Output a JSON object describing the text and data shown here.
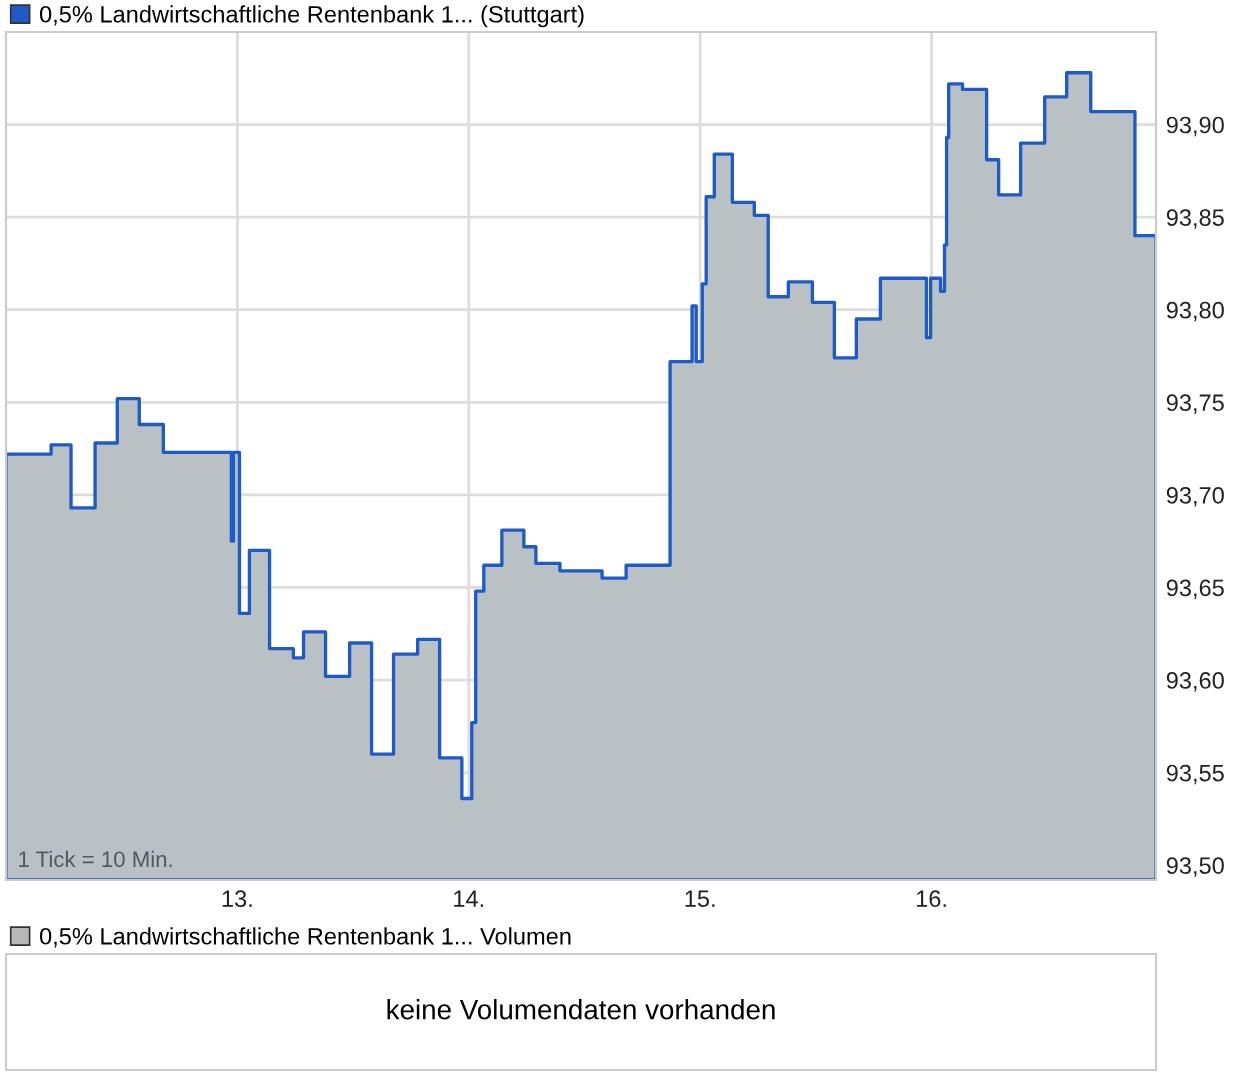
{
  "chart_data": [
    {
      "type": "area",
      "series": [
        {
          "name": "0,5% Landwirtschaftliche Rentenbank 1... (Stuttgart)",
          "color": "#1f5bc6",
          "x": [
            12.0,
            12.195,
            12.281,
            12.385,
            12.481,
            12.576,
            12.68,
            12.974,
            12.983,
            13.009,
            13.052,
            13.139,
            13.242,
            13.286,
            13.381,
            13.485,
            13.58,
            13.675,
            13.779,
            13.874,
            13.97,
            14.013,
            14.03,
            14.065,
            14.143,
            14.238,
            14.29,
            14.394,
            14.576,
            14.68,
            14.87,
            14.965,
            14.983,
            15.009,
            15.026,
            15.061,
            15.139,
            15.234,
            15.294,
            15.381,
            15.485,
            15.58,
            15.675,
            15.779,
            15.978,
            15.996,
            16.039,
            16.056,
            16.065,
            16.074,
            16.134,
            16.238,
            16.29,
            16.385,
            16.489,
            16.584,
            16.688,
            16.879,
            16.97
          ],
          "values": [
            93.722,
            93.727,
            93.693,
            93.728,
            93.752,
            93.738,
            93.723,
            93.675,
            93.723,
            93.636,
            93.67,
            93.617,
            93.612,
            93.626,
            93.602,
            93.62,
            93.56,
            93.614,
            93.622,
            93.558,
            93.536,
            93.577,
            93.648,
            93.662,
            93.681,
            93.672,
            93.663,
            93.659,
            93.655,
            93.662,
            93.772,
            93.802,
            93.772,
            93.814,
            93.861,
            93.884,
            93.858,
            93.851,
            93.807,
            93.815,
            93.804,
            93.774,
            93.795,
            93.817,
            93.785,
            93.817,
            93.81,
            93.835,
            93.893,
            93.922,
            93.919,
            93.881,
            93.862,
            93.89,
            93.915,
            93.928,
            93.907,
            93.84,
            93.84
          ]
        }
      ],
      "xlim": [
        12.0,
        16.97
      ],
      "xticks": [
        {
          "value": 13,
          "label": "13."
        },
        {
          "value": 14,
          "label": "14."
        },
        {
          "value": 15,
          "label": "15."
        },
        {
          "value": 16,
          "label": "16."
        }
      ],
      "ylim": [
        93.492,
        93.95
      ],
      "yticks": [
        {
          "value": 93.5,
          "label": "93,50"
        },
        {
          "value": 93.55,
          "label": "93,55"
        },
        {
          "value": 93.6,
          "label": "93,60"
        },
        {
          "value": 93.65,
          "label": "93,65"
        },
        {
          "value": 93.7,
          "label": "93,70"
        },
        {
          "value": 93.75,
          "label": "93,75"
        },
        {
          "value": 93.8,
          "label": "93,80"
        },
        {
          "value": 93.85,
          "label": "93,85"
        },
        {
          "value": 93.9,
          "label": "93,90"
        }
      ],
      "grid": true,
      "legend": "top left",
      "annotations": [
        "1 Tick = 10 Min."
      ]
    },
    {
      "type": "other",
      "title": "0,5% Landwirtschaftliche Rentenbank 1... Volumen",
      "annotations": [
        "keine Volumendaten vorhanden"
      ]
    }
  ]
}
